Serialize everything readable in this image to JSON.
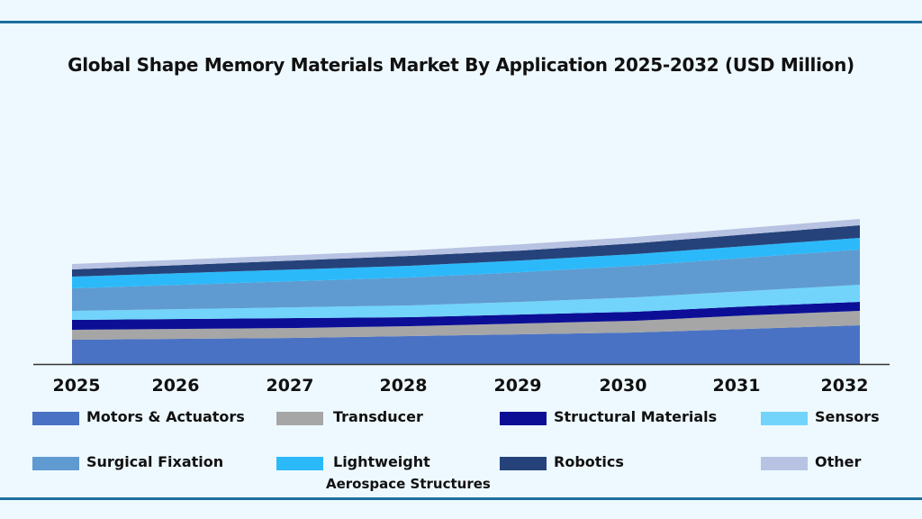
{
  "chart_data": {
    "type": "area",
    "stacked": true,
    "title": "Global Shape Memory Materials Market By Application 2025-2032 (USD Million)",
    "xlabel": "",
    "ylabel": "",
    "categories": [
      "2025",
      "2026",
      "2027",
      "2028",
      "2029",
      "2030",
      "2031",
      "2032"
    ],
    "y_axis_shown": false,
    "grid": false,
    "legend_position": "bottom",
    "series": [
      {
        "name": "Motors & Actuators",
        "color": "#4a72c4",
        "values": [
          27,
          28,
          29,
          31,
          33,
          35,
          39,
          43
        ]
      },
      {
        "name": "Transducer",
        "color": "#a6a6a6",
        "values": [
          11,
          11,
          11,
          11,
          12,
          13,
          15,
          16
        ]
      },
      {
        "name": "Structural Materials",
        "color": "#0c0f96",
        "values": [
          11,
          11,
          11,
          10,
          10,
          10,
          10,
          10
        ]
      },
      {
        "name": "Sensors",
        "color": "#72d4fb",
        "values": [
          10,
          11,
          12,
          13,
          14,
          16,
          17,
          19
        ]
      },
      {
        "name": "Surgical Fixation",
        "color": "#5f9bd0",
        "values": [
          25,
          27,
          29,
          31,
          33,
          35,
          37,
          39
        ]
      },
      {
        "name": "Lightweight\nAerospace Structures",
        "color": "#2cb9fa",
        "values": [
          13,
          13,
          13,
          13,
          13,
          13,
          13,
          13
        ]
      },
      {
        "name": "Robotics",
        "color": "#25437a",
        "values": [
          8,
          9,
          10,
          11,
          11,
          12,
          13,
          14
        ]
      },
      {
        "name": "Other",
        "color": "#b8c2e2",
        "values": [
          6,
          6,
          6,
          6,
          7,
          7,
          7,
          7
        ]
      }
    ]
  },
  "legend": [
    {
      "label": "Motors & Actuators"
    },
    {
      "label": "Transducer"
    },
    {
      "label": "Structural Materials"
    },
    {
      "label": "Sensors"
    },
    {
      "label": "Surgical Fixation"
    },
    {
      "label": "Lightweight",
      "label2": "Aerospace Structures"
    },
    {
      "label": "Robotics"
    },
    {
      "label": "Other"
    }
  ]
}
